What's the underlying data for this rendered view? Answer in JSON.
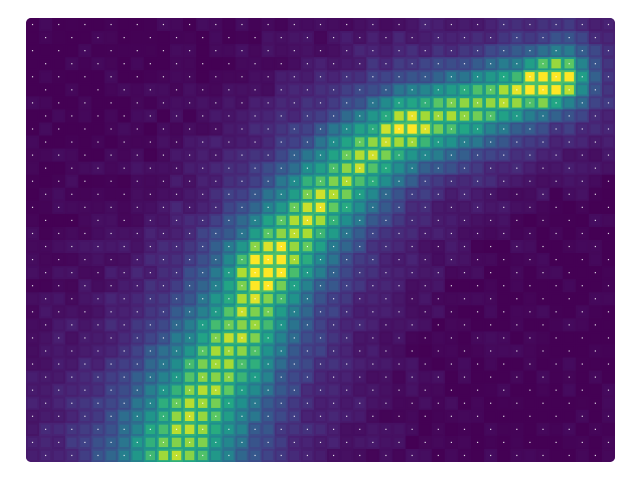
{
  "chart_data": {
    "type": "heatmap",
    "title": "",
    "xlabel": "",
    "ylabel": "",
    "axes_visible": false,
    "grid": false,
    "legend": "none",
    "colormap": "viridis",
    "value_range": [
      0,
      1
    ],
    "cols": 45,
    "rows": 34,
    "hotspots": [
      {
        "col": 18,
        "row": 19,
        "value": 1.0
      },
      {
        "col": 40,
        "row": 5,
        "value": 1.0
      },
      {
        "col": 29,
        "row": 8,
        "value": 0.7
      },
      {
        "col": 22,
        "row": 15,
        "value": 0.6
      },
      {
        "col": 13,
        "row": 29,
        "value": 0.55
      }
    ],
    "ridge_path": [
      [
        41,
        4.5
      ],
      [
        38,
        5.5
      ],
      [
        35,
        6.5
      ],
      [
        32,
        7.5
      ],
      [
        29,
        8.5
      ],
      [
        26,
        10.5
      ],
      [
        23,
        13.5
      ],
      [
        20.5,
        16.5
      ],
      [
        18.5,
        19.5
      ],
      [
        17,
        22.5
      ],
      [
        15.5,
        25.5
      ],
      [
        14,
        28
      ],
      [
        12.5,
        31
      ],
      [
        11.5,
        33.5
      ]
    ],
    "branch_path": [
      [
        17,
        22.5
      ],
      [
        19.5,
        25
      ],
      [
        21.5,
        27
      ],
      [
        22.5,
        29.5
      ],
      [
        21.5,
        32
      ],
      [
        19,
        33.5
      ]
    ]
  },
  "colors": {
    "background": "#ffffff",
    "stipple": "#ffffff",
    "cell_gap": "#39005e"
  }
}
